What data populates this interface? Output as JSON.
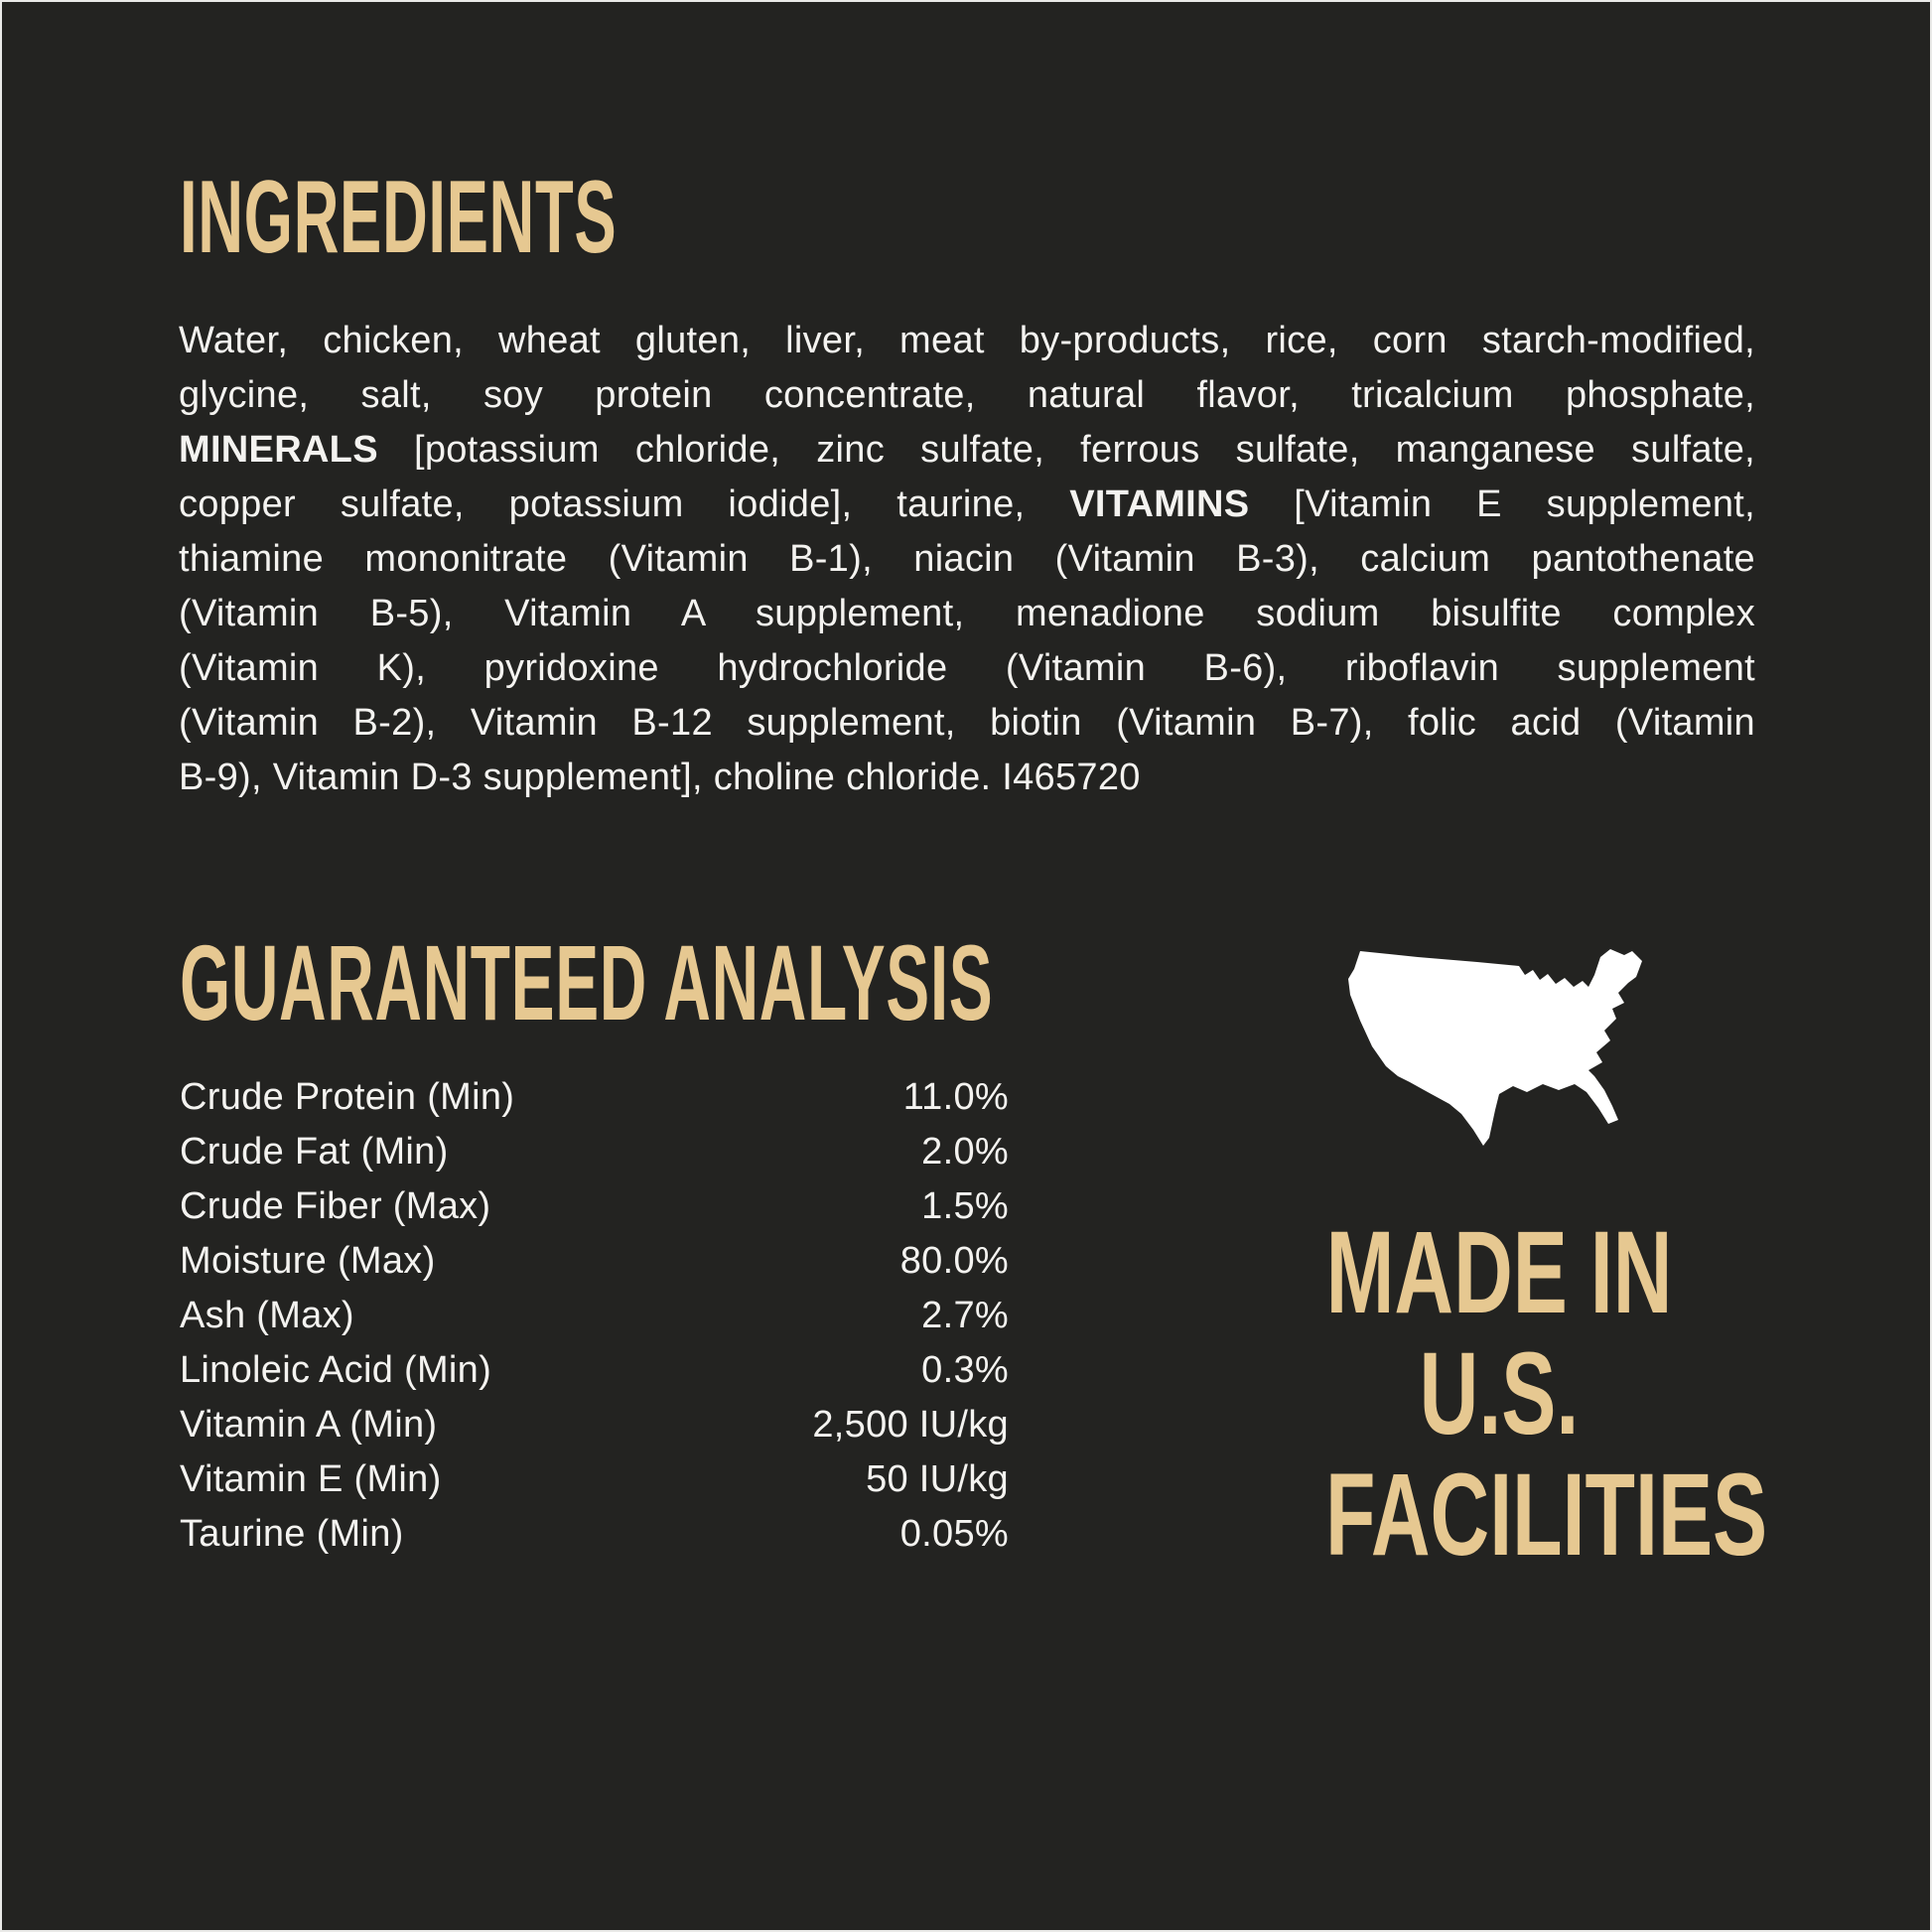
{
  "page": {
    "background_color": "#232321",
    "accent_gold": "#e6c891",
    "text_color": "#f4f3f0",
    "map_color": "#ffffff"
  },
  "ingredients": {
    "title": "INGREDIENTS",
    "lines": [
      [
        {
          "t": "Water, chicken, wheat gluten, liver, meat by-products, rice, corn starch-modified,"
        }
      ],
      [
        {
          "t": "glycine, salt, soy protein concentrate, natural flavor, tricalcium phosphate,"
        }
      ],
      [
        {
          "t": "MINERALS",
          "b": true
        },
        {
          "t": " [potassium chloride, zinc sulfate, ferrous sulfate, manganese sulfate,"
        }
      ],
      [
        {
          "t": "copper sulfate, potassium iodide], taurine, "
        },
        {
          "t": "VITAMINS",
          "b": true
        },
        {
          "t": " [Vitamin E supplement,"
        }
      ],
      [
        {
          "t": "thiamine mononitrate (Vitamin B-1), niacin (Vitamin B-3), calcium pantothenate"
        }
      ],
      [
        {
          "t": "(Vitamin B-5), Vitamin A supplement, menadione sodium bisulfite complex"
        }
      ],
      [
        {
          "t": "(Vitamin K), pyridoxine hydrochloride (Vitamin B-6), riboflavin supplement"
        }
      ],
      [
        {
          "t": "(Vitamin B-2), Vitamin B-12 supplement, biotin (Vitamin B-7), folic acid (Vitamin"
        }
      ],
      [
        {
          "t": "B-9), Vitamin D-3 supplement], choline chloride. I465720"
        }
      ]
    ]
  },
  "analysis": {
    "title": "GUARANTEED ANALYSIS",
    "rows": [
      {
        "label": "Crude Protein (Min)",
        "value": "11.0%"
      },
      {
        "label": "Crude Fat (Min)",
        "value": "2.0%"
      },
      {
        "label": "Crude Fiber (Max)",
        "value": "1.5%"
      },
      {
        "label": "Moisture (Max)",
        "value": "80.0%"
      },
      {
        "label": "Ash (Max)",
        "value": "2.7%"
      },
      {
        "label": "Linoleic Acid (Min)",
        "value": "0.3%"
      },
      {
        "label": "Vitamin A (Min)",
        "value": "2,500 IU/kg"
      },
      {
        "label": "Vitamin E (Min)",
        "value": "50 IU/kg"
      },
      {
        "label": "Taurine (Min)",
        "value": "0.05%"
      }
    ]
  },
  "made_in": {
    "lines": [
      "MADE IN",
      "U.S.",
      "FACILITIES"
    ],
    "map_icon": "usa-map-silhouette"
  }
}
